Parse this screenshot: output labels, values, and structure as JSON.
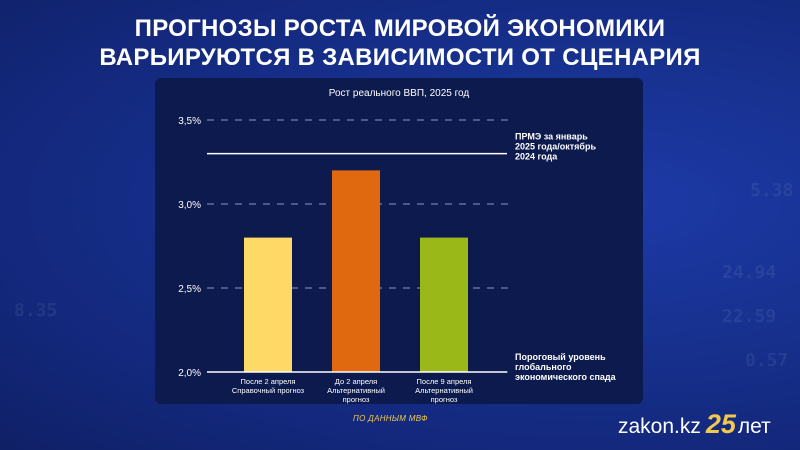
{
  "header": {
    "title_line1": "ПРОГНОЗЫ РОСТА МИРОВОЙ ЭКОНОМИКИ",
    "title_line2": "ВАРЬИРУЮТСЯ В ЗАВИСИМОСТИ ОТ СЦЕНАРИЯ"
  },
  "background_numbers": [
    "24.94",
    "22.59",
    "5.38",
    "8.35",
    "0.57"
  ],
  "chart_data": {
    "type": "bar",
    "title": "Рост реального ВВП, 2025 год",
    "unit": "%",
    "ylim": [
      2.0,
      3.5
    ],
    "yticks": [
      2.0,
      2.5,
      3.0,
      3.5
    ],
    "ytick_labels": [
      "2,0%",
      "2,5%",
      "3,0%",
      "3,5%"
    ],
    "grid": "dashed",
    "categories": [
      [
        "После 2 апреля",
        "Справочный прогноз"
      ],
      [
        "До 2 апреля",
        "Альтернативный",
        "прогноз"
      ],
      [
        "После 9 апреля",
        "Альтернативный",
        "прогноз"
      ]
    ],
    "values": [
      2.8,
      3.2,
      2.8
    ],
    "colors": [
      "#ffd966",
      "#e0680f",
      "#9ab817"
    ],
    "reference_lines": [
      {
        "value": 3.3,
        "label": [
          "ПРМЭ за январь",
          "2025 года/октябрь",
          "2024 года"
        ]
      },
      {
        "value": 2.0,
        "label": [
          "Пороговый уровень",
          "глобального",
          "экономического спада"
        ]
      }
    ]
  },
  "footer": {
    "source": "ПО ДАННЫМ МВФ",
    "logo_text": "zakon.kz",
    "logo_number": "25",
    "logo_suffix": "лет"
  }
}
